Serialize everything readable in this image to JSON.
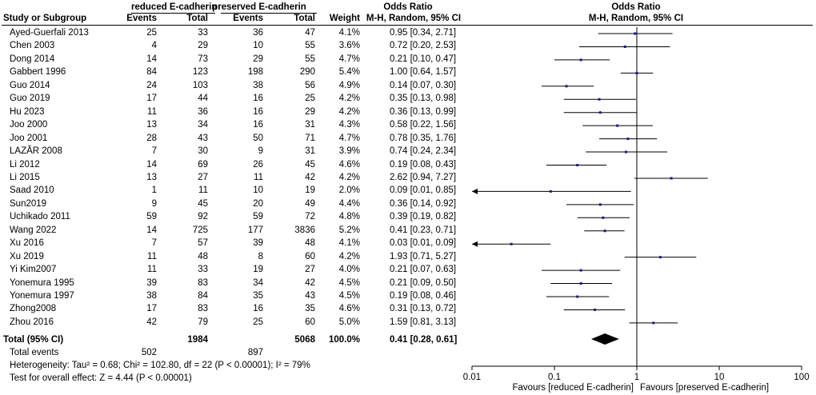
{
  "header": {
    "group1": "reduced E-cadherin",
    "group2": "preserved E-cadherin",
    "study_col": "Study or Subgroup",
    "events": "Events",
    "total": "Total",
    "weight": "Weight",
    "or_title": "Odds Ratio",
    "or_method": "M-H, Random, 95% CI"
  },
  "studies": [
    {
      "name": "Ayed-Guerfali 2013",
      "e1": 25,
      "t1": 33,
      "e2": 36,
      "t2": 47,
      "weight": "4.1%",
      "ci": "0.95 [0.34, 2.71]",
      "or": 0.95,
      "lo": 0.34,
      "hi": 2.71
    },
    {
      "name": "Chen 2003",
      "e1": 4,
      "t1": 29,
      "e2": 10,
      "t2": 55,
      "weight": "3.6%",
      "ci": "0.72 [0.20, 2.53]",
      "or": 0.72,
      "lo": 0.2,
      "hi": 2.53
    },
    {
      "name": "Dong 2014",
      "e1": 14,
      "t1": 73,
      "e2": 29,
      "t2": 55,
      "weight": "4.7%",
      "ci": "0.21 [0.10, 0.47]",
      "or": 0.21,
      "lo": 0.1,
      "hi": 0.47
    },
    {
      "name": "Gabbert 1996",
      "e1": 84,
      "t1": 123,
      "e2": 198,
      "t2": 290,
      "weight": "5.4%",
      "ci": "1.00 [0.64, 1.57]",
      "or": 1.0,
      "lo": 0.64,
      "hi": 1.57
    },
    {
      "name": "Guo 2014",
      "e1": 24,
      "t1": 103,
      "e2": 38,
      "t2": 56,
      "weight": "4.9%",
      "ci": "0.14 [0.07, 0.30]",
      "or": 0.14,
      "lo": 0.07,
      "hi": 0.3
    },
    {
      "name": "Guo 2019",
      "e1": 17,
      "t1": 44,
      "e2": 16,
      "t2": 25,
      "weight": "4.2%",
      "ci": "0.35 [0.13, 0.98]",
      "or": 0.35,
      "lo": 0.13,
      "hi": 0.98
    },
    {
      "name": "Hu 2023",
      "e1": 11,
      "t1": 36,
      "e2": 16,
      "t2": 29,
      "weight": "4.2%",
      "ci": "0.36 [0.13, 0.99]",
      "or": 0.36,
      "lo": 0.13,
      "hi": 0.99
    },
    {
      "name": "Joo 2000",
      "e1": 13,
      "t1": 34,
      "e2": 16,
      "t2": 31,
      "weight": "4.3%",
      "ci": "0.58 [0.22, 1.56]",
      "or": 0.58,
      "lo": 0.22,
      "hi": 1.56
    },
    {
      "name": "Joo 2001",
      "e1": 28,
      "t1": 43,
      "e2": 50,
      "t2": 71,
      "weight": "4.7%",
      "ci": "0.78 [0.35, 1.76]",
      "or": 0.78,
      "lo": 0.35,
      "hi": 1.76
    },
    {
      "name": "LAZĂR 2008",
      "e1": 7,
      "t1": 30,
      "e2": 9,
      "t2": 31,
      "weight": "3.9%",
      "ci": "0.74 [0.24, 2.34]",
      "or": 0.74,
      "lo": 0.24,
      "hi": 2.34
    },
    {
      "name": "Li 2012",
      "e1": 14,
      "t1": 69,
      "e2": 26,
      "t2": 45,
      "weight": "4.6%",
      "ci": "0.19 [0.08, 0.43]",
      "or": 0.19,
      "lo": 0.08,
      "hi": 0.43
    },
    {
      "name": "Li 2015",
      "e1": 13,
      "t1": 27,
      "e2": 11,
      "t2": 42,
      "weight": "4.2%",
      "ci": "2.62 [0.94, 7.27]",
      "or": 2.62,
      "lo": 0.94,
      "hi": 7.27
    },
    {
      "name": "Saad 2010",
      "e1": 1,
      "t1": 11,
      "e2": 10,
      "t2": 19,
      "weight": "2.0%",
      "ci": "0.09 [0.01, 0.85]",
      "or": 0.09,
      "lo": 0.01,
      "hi": 0.85
    },
    {
      "name": "Sun2019",
      "e1": 9,
      "t1": 45,
      "e2": 20,
      "t2": 49,
      "weight": "4.4%",
      "ci": "0.36 [0.14, 0.92]",
      "or": 0.36,
      "lo": 0.14,
      "hi": 0.92
    },
    {
      "name": "Uchikado  2011",
      "e1": 59,
      "t1": 92,
      "e2": 59,
      "t2": 72,
      "weight": "4.8%",
      "ci": "0.39 [0.19, 0.82]",
      "or": 0.39,
      "lo": 0.19,
      "hi": 0.82
    },
    {
      "name": "Wang 2022",
      "e1": 14,
      "t1": 725,
      "e2": 177,
      "t2": 3836,
      "weight": "5.2%",
      "ci": "0.41 [0.23, 0.71]",
      "or": 0.41,
      "lo": 0.23,
      "hi": 0.71
    },
    {
      "name": "Xu 2016",
      "e1": 7,
      "t1": 57,
      "e2": 39,
      "t2": 48,
      "weight": "4.1%",
      "ci": "0.03 [0.01, 0.09]",
      "or": 0.03,
      "lo": 0.01,
      "hi": 0.09
    },
    {
      "name": "Xu 2019",
      "e1": 11,
      "t1": 48,
      "e2": 8,
      "t2": 60,
      "weight": "4.2%",
      "ci": "1.93 [0.71, 5.27]",
      "or": 1.93,
      "lo": 0.71,
      "hi": 5.27
    },
    {
      "name": "Yi Kim2007",
      "e1": 11,
      "t1": 33,
      "e2": 19,
      "t2": 27,
      "weight": "4.0%",
      "ci": "0.21 [0.07, 0.63]",
      "or": 0.21,
      "lo": 0.07,
      "hi": 0.63
    },
    {
      "name": "Yonemura 1995",
      "e1": 39,
      "t1": 83,
      "e2": 34,
      "t2": 42,
      "weight": "4.5%",
      "ci": "0.21 [0.09, 0.50]",
      "or": 0.21,
      "lo": 0.09,
      "hi": 0.5
    },
    {
      "name": "Yonemura 1997",
      "e1": 38,
      "t1": 84,
      "e2": 35,
      "t2": 43,
      "weight": "4.5%",
      "ci": "0.19 [0.08, 0.46]",
      "or": 0.19,
      "lo": 0.08,
      "hi": 0.46
    },
    {
      "name": "Zhong2008",
      "e1": 17,
      "t1": 83,
      "e2": 16,
      "t2": 35,
      "weight": "4.6%",
      "ci": "0.31 [0.13, 0.72]",
      "or": 0.31,
      "lo": 0.13,
      "hi": 0.72
    },
    {
      "name": "Zhou 2016",
      "e1": 42,
      "t1": 79,
      "e2": 25,
      "t2": 60,
      "weight": "5.0%",
      "ci": "1.59 [0.81, 3.13]",
      "or": 1.59,
      "lo": 0.81,
      "hi": 3.13
    }
  ],
  "total": {
    "label": "Total (95% CI)",
    "t1": 1984,
    "t2": 5068,
    "weight": "100.0%",
    "ci": "0.41 [0.28, 0.61]",
    "or": 0.41,
    "lo": 0.28,
    "hi": 0.61
  },
  "total_events": {
    "label": "Total events",
    "e1": 502,
    "e2": 897
  },
  "heterogeneity": "Heterogeneity: Tau² = 0.68; Chi² = 102.80, df = 22 (P < 0.00001); I² = 79%",
  "overall_effect": "Test for overall effect: Z = 4.44 (P < 0.00001)",
  "axis": {
    "ticks": [
      0.01,
      0.1,
      1,
      10,
      100
    ],
    "tick_labels": [
      "0.01",
      "0.1",
      "1",
      "10",
      "100"
    ],
    "favours_left": "Favours [reduced E-cadherin]",
    "favours_right": "Favours [preserved E-cadherin]"
  },
  "chart_data": {
    "type": "forest",
    "title": "Odds Ratio",
    "subtitle": "M-H, Random, 95% CI",
    "xscale": "log",
    "xlim": [
      0.01,
      100
    ],
    "null_line": 1
  }
}
